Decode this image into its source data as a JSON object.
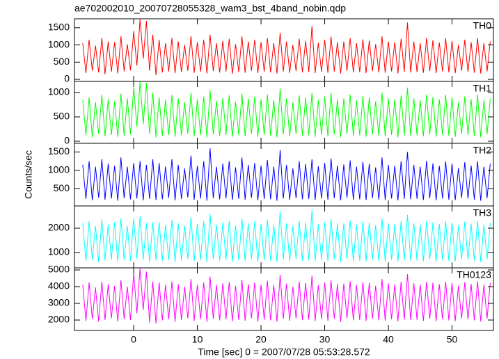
{
  "chart_data": {
    "type": "line",
    "title": "ae702002010_20070728055328_wam3_bst_4band_nobin.qdp",
    "xlabel": "Time [sec] 0 = 2007/07/28 05:53:28.572",
    "ylabel": "Counts/sec",
    "xlim": [
      -9.3,
      56.5
    ],
    "xticks": [
      0,
      10,
      20,
      30,
      40,
      50
    ],
    "x": [
      -8,
      -7.5,
      -7,
      -6.5,
      -6,
      -5.5,
      -5,
      -4.5,
      -4,
      -3.5,
      -3,
      -2.5,
      -2,
      -1.5,
      -1,
      -0.5,
      0,
      0.5,
      1,
      1.5,
      2,
      2.5,
      3,
      3.5,
      4,
      4.5,
      5,
      5.5,
      6,
      6.5,
      7,
      7.5,
      8,
      8.5,
      9,
      9.5,
      10,
      10.5,
      11,
      11.5,
      12,
      12.5,
      13,
      13.5,
      14,
      14.5,
      15,
      15.5,
      16,
      16.5,
      17,
      17.5,
      18,
      18.5,
      19,
      19.5,
      20,
      20.5,
      21,
      21.5,
      22,
      22.5,
      23,
      23.5,
      24,
      24.5,
      25,
      25.5,
      26,
      26.5,
      27,
      27.5,
      28,
      28.5,
      29,
      29.5,
      30,
      30.5,
      31,
      31.5,
      32,
      32.5,
      33,
      33.5,
      34,
      34.5,
      35,
      35.5,
      36,
      36.5,
      37,
      37.5,
      38,
      38.5,
      39,
      39.5,
      40,
      40.5,
      41,
      41.5,
      42,
      42.5,
      43,
      43.5,
      44,
      44.5,
      45,
      45.5,
      46,
      46.5,
      47,
      47.5,
      48,
      48.5,
      49,
      49.5,
      50,
      50.5,
      51,
      51.5,
      52,
      52.5,
      53,
      53.5,
      54,
      54.5,
      55,
      55.5,
      56
    ],
    "series": [
      {
        "name": "TH0",
        "color": "#ff0000",
        "ylim": [
          -60,
          1760
        ],
        "yticks": [
          0,
          500,
          1000,
          1500
        ],
        "values": [
          1050,
          180,
          1150,
          250,
          980,
          200,
          1200,
          150,
          1100,
          220,
          1080,
          170,
          1250,
          230,
          1020,
          260,
          1400,
          400,
          1750,
          600,
          1700,
          250,
          1300,
          120,
          1150,
          200,
          1050,
          230,
          1200,
          180,
          1100,
          210,
          1000,
          250,
          1250,
          190,
          1080,
          220,
          1150,
          170,
          1300,
          240,
          1050,
          200,
          1120,
          230,
          1180,
          160,
          1020,
          210,
          1250,
          190,
          1100,
          250,
          1150,
          180,
          1080,
          220,
          1200,
          200,
          1050,
          170,
          1350,
          230,
          1100,
          190,
          1000,
          240,
          1180,
          200,
          1120,
          210,
          1550,
          180,
          1060,
          220,
          1150,
          190,
          1240,
          230,
          1080,
          170,
          1100,
          250,
          1200,
          200,
          1050,
          210,
          1160,
          180,
          1130,
          240,
          1020,
          200,
          1250,
          190,
          1100,
          230,
          1080,
          170,
          1180,
          220,
          1650,
          200,
          1100,
          210,
          1050,
          190,
          1200,
          240,
          1140,
          180,
          1070,
          230,
          1190,
          200,
          1120,
          180,
          1000,
          250,
          1150,
          220,
          1080,
          190,
          1200,
          170,
          1050,
          230,
          1100
        ]
      },
      {
        "name": "TH1",
        "color": "#00ff00",
        "ylim": [
          -43,
          1229
        ],
        "yticks": [
          0,
          500,
          1000
        ],
        "values": [
          850,
          120,
          900,
          80,
          800,
          150,
          950,
          100,
          870,
          130,
          820,
          90,
          980,
          110,
          880,
          140,
          1100,
          300,
          1220,
          350,
          1200,
          150,
          1000,
          80,
          900,
          110,
          850,
          130,
          950,
          90,
          880,
          120,
          800,
          150,
          1000,
          100,
          860,
          130,
          920,
          80,
          1050,
          140,
          830,
          110,
          890,
          130,
          940,
          90,
          810,
          120,
          980,
          100,
          870,
          150,
          920,
          90,
          860,
          130,
          960,
          110,
          840,
          80,
          1080,
          140,
          880,
          100,
          800,
          150,
          940,
          110,
          900,
          120,
          1000,
          90,
          850,
          130,
          920,
          100,
          990,
          140,
          860,
          80,
          880,
          150,
          960,
          110,
          840,
          120,
          930,
          90,
          900,
          140,
          820,
          110,
          1000,
          100,
          880,
          130,
          860,
          80,
          940,
          120,
          1100,
          110,
          880,
          120,
          840,
          100,
          960,
          140,
          910,
          90,
          860,
          130,
          950,
          110,
          900,
          90,
          800,
          150,
          920,
          130,
          860,
          100,
          960,
          80,
          840,
          140,
          880
        ]
      },
      {
        "name": "TH2",
        "color": "#0000ff",
        "ylim": [
          28,
          1736
        ],
        "yticks": [
          500,
          1000,
          1500
        ],
        "values": [
          1150,
          220,
          1250,
          180,
          1100,
          250,
          1300,
          200,
          1180,
          230,
          1120,
          170,
          1350,
          240,
          1100,
          210,
          1200,
          230,
          1250,
          180,
          1150,
          220,
          1300,
          190,
          1200,
          210,
          1100,
          250,
          1300,
          180,
          1150,
          220,
          1050,
          260,
          1400,
          200,
          1120,
          230,
          1250,
          170,
          1600,
          240,
          1100,
          210,
          1180,
          230,
          1250,
          190,
          1080,
          220,
          1350,
          200,
          1150,
          250,
          1200,
          180,
          1130,
          220,
          1280,
          210,
          1100,
          170,
          1550,
          230,
          1150,
          200,
          1050,
          240,
          1250,
          210,
          1170,
          220,
          1300,
          190,
          1110,
          230,
          1200,
          200,
          1320,
          240,
          1130,
          180,
          1160,
          250,
          1270,
          200,
          1100,
          210,
          1230,
          190,
          1180,
          240,
          1080,
          200,
          1350,
          190,
          1150,
          230,
          1120,
          180,
          1250,
          220,
          1500,
          210,
          1150,
          220,
          1100,
          190,
          1260,
          240,
          1190,
          180,
          1120,
          230,
          1240,
          200,
          1180,
          190,
          1060,
          250,
          1220,
          230,
          1130,
          200,
          1250,
          170,
          1100,
          240,
          1180
        ]
      },
      {
        "name": "TH3",
        "color": "#00ffff",
        "ylim": [
          371,
          2914
        ],
        "yticks": [
          1000,
          2000
        ],
        "values": [
          2200,
          650,
          2300,
          700,
          2100,
          600,
          2350,
          680,
          2150,
          720,
          2250,
          640,
          2400,
          700,
          2100,
          660,
          2400,
          750,
          2500,
          700,
          2200,
          620,
          2250,
          680,
          2250,
          660,
          2150,
          700,
          2350,
          620,
          2200,
          680,
          2100,
          740,
          2450,
          650,
          2180,
          700,
          2300,
          610,
          2600,
          720,
          2150,
          660,
          2250,
          700,
          2300,
          630,
          2120,
          680,
          2400,
          650,
          2200,
          740,
          2280,
          620,
          2180,
          690,
          2350,
          660,
          2150,
          610,
          2700,
          720,
          2200,
          650,
          2100,
          730,
          2300,
          660,
          2220,
          680,
          2750,
          640,
          2160,
          700,
          2250,
          650,
          2380,
          720,
          2180,
          620,
          2200,
          740,
          2320,
          650,
          2150,
          660,
          2280,
          640,
          2230,
          720,
          2130,
          650,
          2400,
          640,
          2200,
          700,
          2170,
          630,
          2300,
          680,
          2550,
          660,
          2200,
          670,
          2150,
          640,
          2310,
          720,
          2240,
          630,
          2170,
          700,
          2290,
          650,
          2230,
          640,
          2110,
          730,
          2270,
          700,
          2180,
          650,
          2300,
          620,
          2150,
          720,
          2230
        ]
      },
      {
        "name": "TH0123",
        "color": "#ff00ff",
        "ylim": [
          1375,
          5125
        ],
        "yticks": [
          2000,
          3000,
          4000,
          5000
        ],
        "values": [
          4100,
          1950,
          4250,
          2050,
          3950,
          1900,
          4300,
          2000,
          4150,
          2100,
          4050,
          1920,
          4400,
          2050,
          4000,
          2000,
          4800,
          2400,
          5100,
          2600,
          4900,
          1850,
          4300,
          1800,
          4250,
          1980,
          4100,
          2050,
          4300,
          1900,
          4150,
          2000,
          4000,
          2100,
          4450,
          1950,
          4120,
          2050,
          4250,
          1900,
          4600,
          2080,
          4100,
          1980,
          4200,
          2050,
          4280,
          1920,
          4050,
          2000,
          4400,
          1960,
          4150,
          2100,
          4250,
          1900,
          4120,
          2020,
          4350,
          1980,
          4100,
          1900,
          4700,
          2080,
          4180,
          1960,
          4000,
          2100,
          4300,
          1990,
          4220,
          2020,
          4650,
          1940,
          4100,
          2050,
          4250,
          1960,
          4380,
          2080,
          4150,
          1900,
          4180,
          2100,
          4320,
          1980,
          4100,
          2000,
          4280,
          1950,
          4230,
          2080,
          4050,
          1980,
          4450,
          1960,
          4200,
          2050,
          4130,
          1920,
          4300,
          2030,
          4750,
          2000,
          4200,
          2010,
          4120,
          1950,
          4300,
          2080,
          4240,
          1930,
          4150,
          2050,
          4290,
          1980,
          4220,
          1940,
          4060,
          2100,
          4270,
          2050,
          4160,
          1980,
          4320,
          1920,
          4120,
          2080,
          4230
        ]
      }
    ]
  }
}
